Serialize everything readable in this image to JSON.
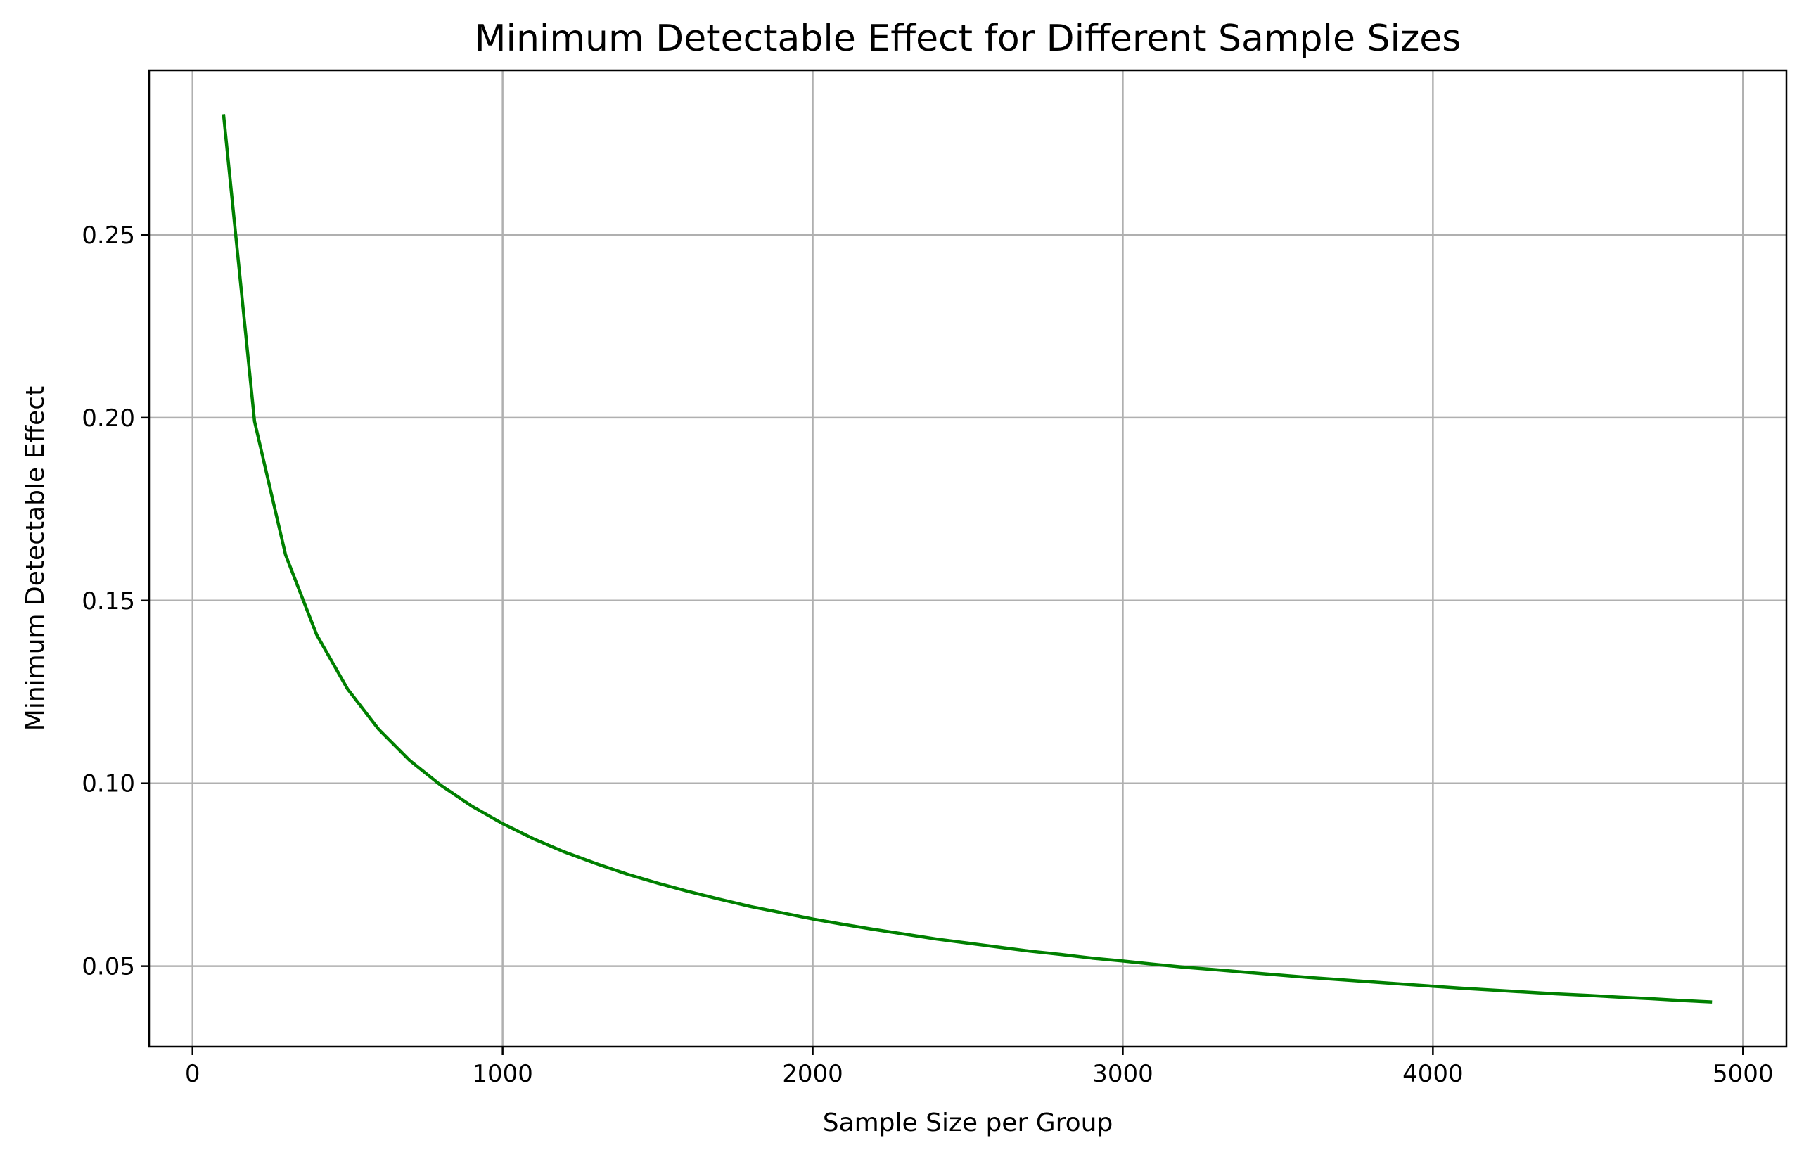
{
  "chart_data": {
    "type": "line",
    "title": "Minimum Detectable Effect for Different Sample Sizes",
    "xlabel": "Sample Size per Group",
    "ylabel": "Minimum Detectable Effect",
    "xlim": [
      -140,
      5140
    ],
    "ylim": [
      0.028,
      0.295
    ],
    "xticks": [
      0,
      1000,
      2000,
      3000,
      4000,
      5000
    ],
    "yticks": [
      0.05,
      0.1,
      0.15,
      0.2,
      0.25
    ],
    "xtick_labels": [
      "0",
      "1000",
      "2000",
      "3000",
      "4000",
      "5000"
    ],
    "ytick_labels": [
      "0.05",
      "0.10",
      "0.15",
      "0.20",
      "0.25"
    ],
    "grid": true,
    "series": [
      {
        "color": "#008000",
        "x": [
          100,
          200,
          300,
          400,
          500,
          600,
          700,
          800,
          900,
          1000,
          1100,
          1200,
          1300,
          1400,
          1500,
          1600,
          1700,
          1800,
          1900,
          2000,
          2100,
          2200,
          2300,
          2400,
          2500,
          2600,
          2700,
          2800,
          2900,
          3000,
          3100,
          3200,
          3300,
          3400,
          3500,
          3600,
          3700,
          3800,
          3900,
          4000,
          4100,
          4200,
          4300,
          4400,
          4500,
          4600,
          4700,
          4800,
          4900
        ],
        "y": [
          0.283,
          0.199,
          0.1625,
          0.1407,
          0.1258,
          0.1148,
          0.1063,
          0.0995,
          0.0938,
          0.089,
          0.0848,
          0.0812,
          0.0781,
          0.0752,
          0.0727,
          0.0704,
          0.0683,
          0.0663,
          0.0646,
          0.0629,
          0.0614,
          0.06,
          0.0587,
          0.0574,
          0.0563,
          0.0552,
          0.0541,
          0.0532,
          0.0522,
          0.0514,
          0.0505,
          0.0497,
          0.049,
          0.0483,
          0.0476,
          0.0469,
          0.0463,
          0.0457,
          0.0451,
          0.0445,
          0.0439,
          0.0434,
          0.0429,
          0.0424,
          0.042,
          0.0415,
          0.0411,
          0.0406,
          0.0402
        ]
      }
    ]
  }
}
